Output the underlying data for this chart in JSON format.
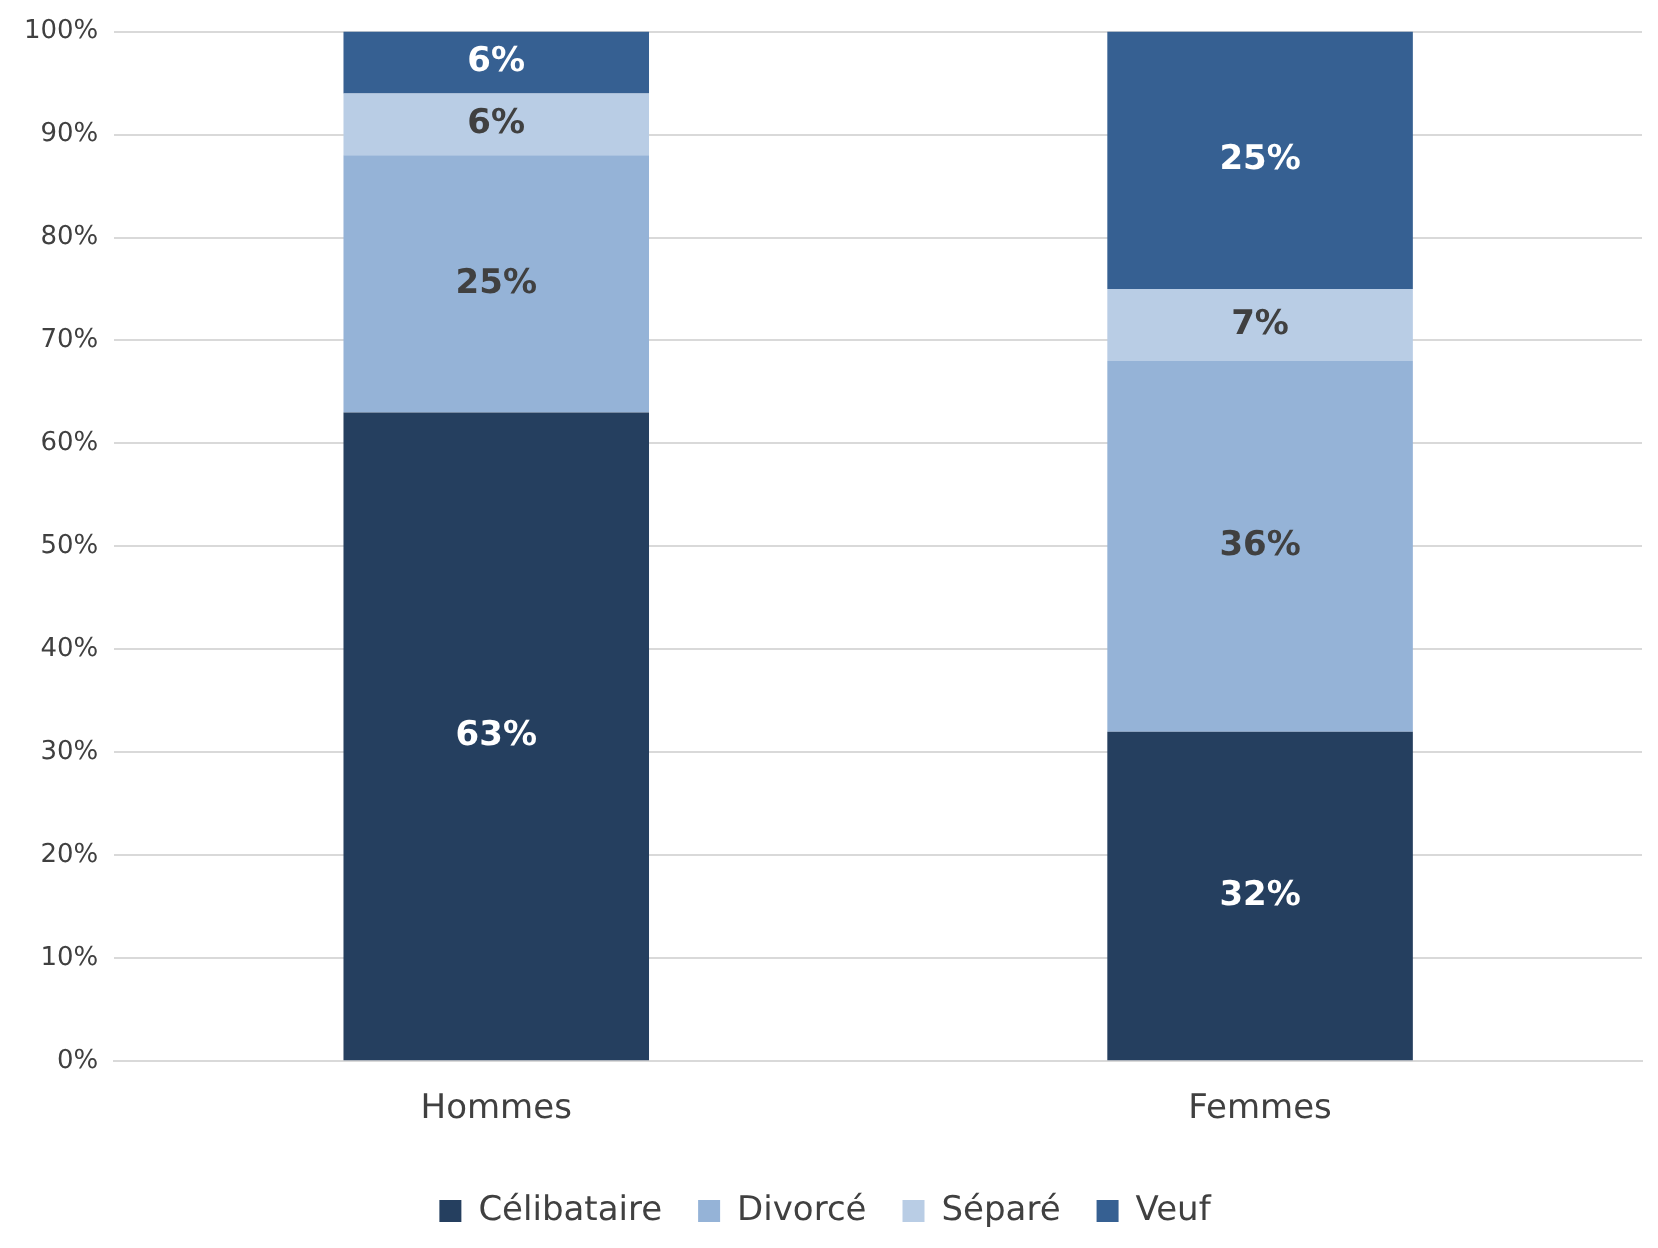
{
  "chart_data": {
    "type": "bar",
    "stacked": true,
    "categories": [
      "Hommes",
      "Femmes"
    ],
    "series": [
      {
        "name": "Célibataire",
        "color": "#253f5f",
        "values": [
          63,
          32
        ],
        "value_labels": [
          "63%",
          "32%"
        ]
      },
      {
        "name": "Divorcé",
        "color": "#95b3d7",
        "values": [
          25,
          36
        ],
        "value_labels": [
          "25%",
          "36%"
        ]
      },
      {
        "name": "Séparé",
        "color": "#b9cde5",
        "values": [
          6,
          7
        ],
        "value_labels": [
          "6%",
          "7%"
        ]
      },
      {
        "name": "Veuf",
        "color": "#366092",
        "values": [
          6,
          25
        ],
        "value_labels": [
          "6%",
          "25%"
        ]
      }
    ],
    "ylim": [
      0,
      100
    ],
    "yticks": [
      {
        "value": 0,
        "label": "0%"
      },
      {
        "value": 10,
        "label": "10%"
      },
      {
        "value": 20,
        "label": "20%"
      },
      {
        "value": 30,
        "label": "30%"
      },
      {
        "value": 40,
        "label": "40%"
      },
      {
        "value": 50,
        "label": "50%"
      },
      {
        "value": 60,
        "label": "60%"
      },
      {
        "value": 70,
        "label": "70%"
      },
      {
        "value": 80,
        "label": "80%"
      },
      {
        "value": 90,
        "label": "90%"
      },
      {
        "value": 100,
        "label": "100%"
      }
    ],
    "grid": "y",
    "legend": "bottom"
  }
}
